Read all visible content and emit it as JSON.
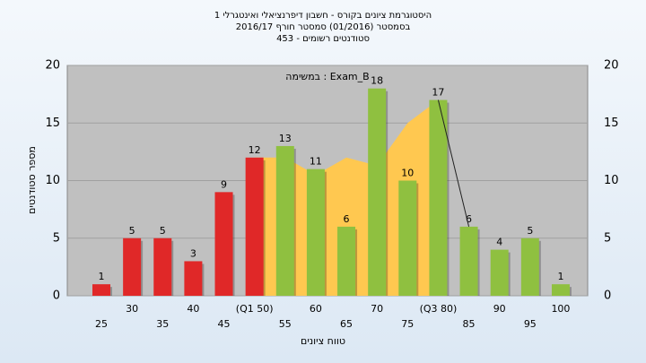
{
  "chart_data": {
    "type": "bar",
    "title": "היסטוגרמת ציונים בקורס - חשבון דיפרנציאלי ואינטגרלי 1",
    "subtitle": "בסמסטר (01/2016) סמסטר חורף 2016/17",
    "subtitle2": "סטודנטים רשומים - 453",
    "annotation": "במשימה : Exam_B",
    "x_label": "טווח ציונים",
    "y_label": "מספר סטודנטים",
    "categories": [
      "25",
      "30",
      "35",
      "40",
      "45",
      "(Q1 50)",
      "55",
      "60",
      "65",
      "70",
      "75",
      "(Q3 80)",
      "85",
      "90",
      "95",
      "100"
    ],
    "values": [
      1,
      5,
      5,
      3,
      9,
      12,
      13,
      11,
      6,
      18,
      10,
      17,
      6,
      4,
      5,
      1
    ],
    "colors": [
      "#e02828",
      "#e02828",
      "#e02828",
      "#e02828",
      "#e02828",
      "#e02828",
      "#8fc040",
      "#8fc040",
      "#8fc040",
      "#8fc040",
      "#8fc040",
      "#8fc040",
      "#8fc040",
      "#8fc040",
      "#8fc040",
      "#8fc040"
    ],
    "area": {
      "color": "#ffc850",
      "values": [
        null,
        null,
        null,
        null,
        null,
        12,
        12,
        10.5,
        12,
        11.3,
        15,
        17,
        null,
        null,
        null,
        null
      ]
    },
    "line": {
      "color": "#202020",
      "values": [
        null,
        null,
        null,
        null,
        null,
        null,
        null,
        null,
        null,
        null,
        null,
        17,
        6,
        null,
        null,
        null
      ]
    },
    "ylim": [
      0,
      20
    ],
    "yticks": [
      0,
      5,
      10,
      15,
      20
    ],
    "grid": true
  }
}
